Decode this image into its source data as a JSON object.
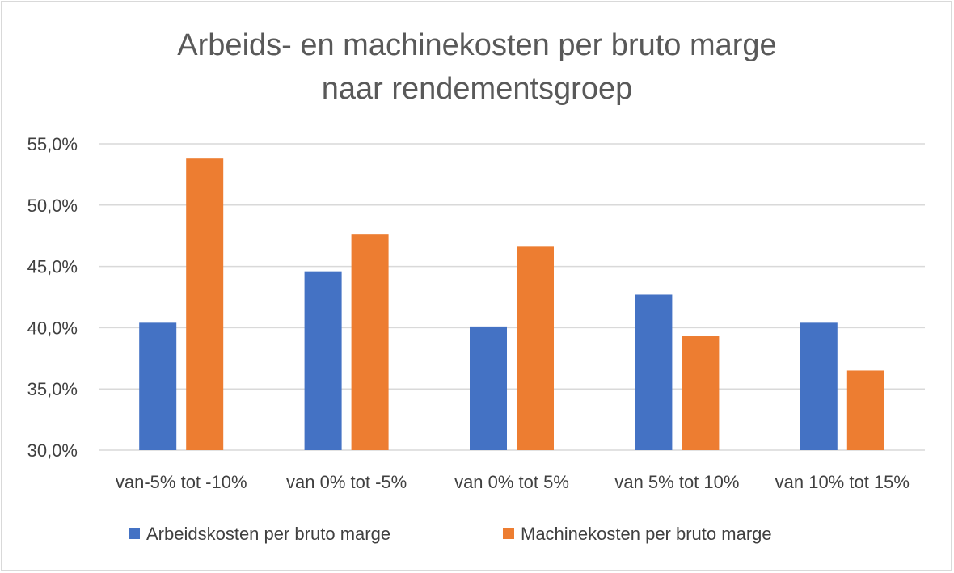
{
  "chart_data": {
    "type": "bar",
    "title": [
      "Arbeids- en machinekosten per bruto marge",
      "naar rendementsgroep"
    ],
    "categories": [
      "van-5% tot -10%",
      "van 0% tot -5%",
      "van 0% tot 5%",
      "van 5% tot 10%",
      "van 10% tot 15%"
    ],
    "series": [
      {
        "name": "Arbeidskosten per bruto marge",
        "color": "#4472c4",
        "values": [
          40.4,
          44.6,
          40.1,
          42.7,
          40.4
        ]
      },
      {
        "name": "Machinekosten per bruto marge",
        "color": "#ed7d31",
        "values": [
          53.8,
          47.6,
          46.6,
          39.3,
          36.5
        ]
      }
    ],
    "ylim": [
      30,
      55
    ],
    "yticks": [
      30,
      35,
      40,
      45,
      50,
      55
    ],
    "ytick_labels": [
      "30,0%",
      "35,0%",
      "40,0%",
      "45,0%",
      "50,0%",
      "55,0%"
    ],
    "grid": true,
    "legend": "bottom"
  }
}
